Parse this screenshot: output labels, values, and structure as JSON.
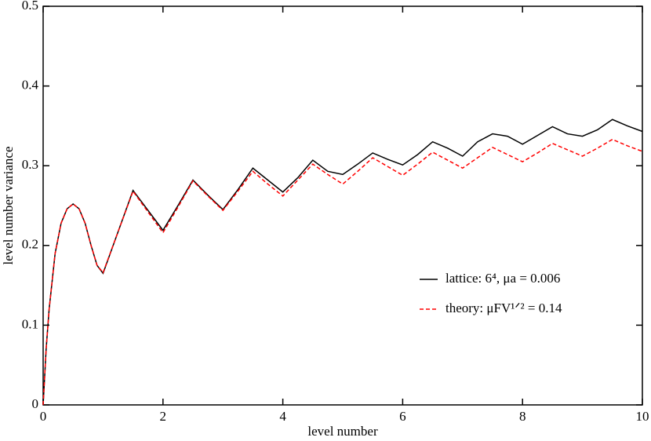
{
  "chart_data": {
    "type": "line",
    "xlabel": "level number",
    "ylabel": "level number variance",
    "x": [
      0,
      0.05,
      0.1,
      0.2,
      0.3,
      0.4,
      0.5,
      0.6,
      0.7,
      0.8,
      0.9,
      1.0,
      1.25,
      1.5,
      1.75,
      2,
      2.25,
      2.5,
      2.75,
      3,
      3.25,
      3.5,
      3.75,
      4,
      4.25,
      4.5,
      4.75,
      5,
      5.25,
      5.5,
      5.75,
      6,
      6.25,
      6.5,
      6.75,
      7,
      7.25,
      7.5,
      7.75,
      8,
      8.25,
      8.5,
      8.75,
      9,
      9.25,
      9.5,
      9.75,
      10
    ],
    "series": [
      {
        "name": "lattice: 6⁴, μa = 0.006",
        "color": "#000000",
        "linestyle": "solid",
        "values": [
          0,
          0.07,
          0.12,
          0.19,
          0.228,
          0.246,
          0.252,
          0.246,
          0.228,
          0.2,
          0.175,
          0.165,
          0.217,
          0.269,
          0.244,
          0.219,
          0.25,
          0.282,
          0.263,
          0.245,
          0.27,
          0.297,
          0.282,
          0.267,
          0.285,
          0.307,
          0.293,
          0.289,
          0.302,
          0.316,
          0.308,
          0.301,
          0.314,
          0.33,
          0.322,
          0.312,
          0.33,
          0.34,
          0.337,
          0.327,
          0.338,
          0.349,
          0.34,
          0.337,
          0.345,
          0.358,
          0.35,
          0.343
        ]
      },
      {
        "name": "theory: μFV¹ᐟ² = 0.14",
        "color": "#ff0000",
        "linestyle": "dashed",
        "values": [
          0,
          0.07,
          0.12,
          0.19,
          0.228,
          0.246,
          0.252,
          0.246,
          0.228,
          0.2,
          0.175,
          0.166,
          0.217,
          0.268,
          0.242,
          0.216,
          0.248,
          0.281,
          0.262,
          0.244,
          0.268,
          0.293,
          0.277,
          0.262,
          0.282,
          0.302,
          0.289,
          0.277,
          0.293,
          0.31,
          0.299,
          0.288,
          0.302,
          0.317,
          0.307,
          0.297,
          0.31,
          0.323,
          0.314,
          0.305,
          0.316,
          0.328,
          0.32,
          0.312,
          0.322,
          0.333,
          0.325,
          0.318
        ]
      }
    ],
    "xlim": [
      0,
      10
    ],
    "xticks": [
      0,
      2,
      4,
      6,
      8,
      10
    ],
    "ylim": [
      0,
      0.5
    ],
    "yticks": [
      0,
      0.1,
      0.2,
      0.3,
      0.4,
      0.5
    ],
    "grid": false
  }
}
